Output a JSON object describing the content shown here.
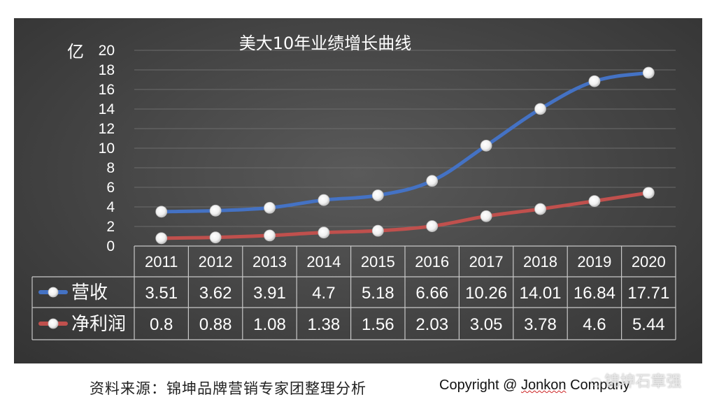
{
  "chart_data": {
    "type": "line",
    "title": "美大10年业绩增长曲线",
    "ylabel": "亿",
    "ylim": [
      0,
      20
    ],
    "yticks": [
      0,
      2,
      4,
      6,
      8,
      10,
      12,
      14,
      16,
      18,
      20
    ],
    "grid": true,
    "categories": [
      "2011",
      "2012",
      "2013",
      "2014",
      "2015",
      "2016",
      "2017",
      "2018",
      "2019",
      "2020"
    ],
    "series": [
      {
        "name": "营收",
        "color": "#4472c4",
        "values": [
          3.51,
          3.62,
          3.91,
          4.7,
          5.18,
          6.66,
          10.26,
          14.01,
          16.84,
          17.71
        ],
        "labels": [
          "3.51",
          "3.62",
          "3.91",
          "4.7",
          "5.18",
          "6.66",
          "10.26",
          "14.01",
          "16.84",
          "17.71"
        ]
      },
      {
        "name": "净利润",
        "color": "#c0504d",
        "values": [
          0.8,
          0.88,
          1.08,
          1.38,
          1.56,
          2.03,
          3.05,
          3.78,
          4.6,
          5.44
        ],
        "labels": [
          "0.8",
          "0.88",
          "1.08",
          "1.38",
          "1.56",
          "2.03",
          "3.05",
          "3.78",
          "4.6",
          "5.44"
        ]
      }
    ],
    "legend": "data-table"
  },
  "footer": {
    "source": "资料来源：锦坤品牌营销专家团整理分析",
    "copyright_prefix": "Copyright @ ",
    "copyright_name": "Jonkon",
    "copyright_suffix": " Company"
  },
  "watermark": {
    "icon": "wechat-icon",
    "text": "锦坤石章强"
  }
}
